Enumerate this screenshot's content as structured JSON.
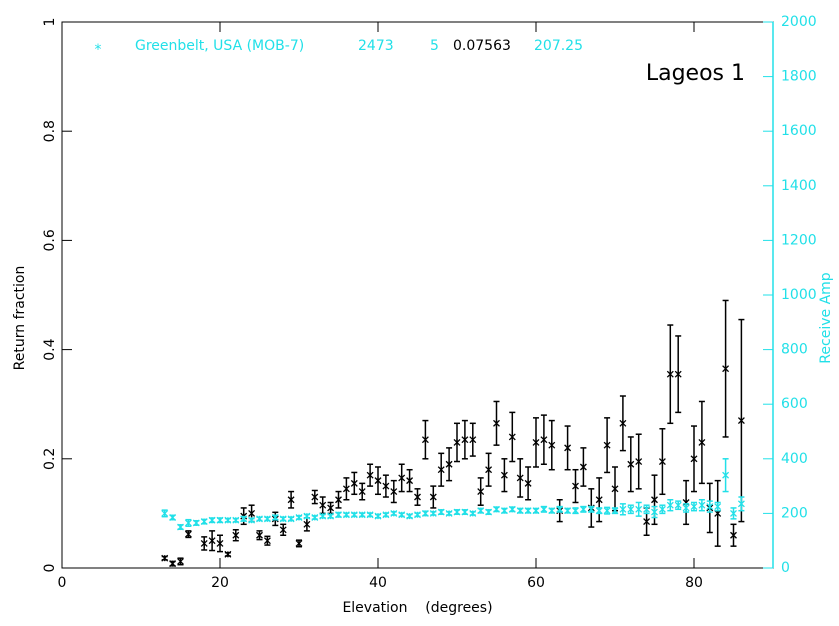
{
  "chart_data": {
    "type": "scatter",
    "title": "Lageos 1",
    "header": {
      "marker": "*",
      "station": "Greenbelt, USA (MOB-7)",
      "station_color": "#22e0e8",
      "stats": [
        {
          "value": 2473,
          "color": "#22e0e8"
        },
        {
          "value": 5,
          "color": "#22e0e8"
        },
        {
          "value": 0.07563,
          "color": "#000000"
        },
        {
          "value": 207.25,
          "color": "#22e0e8"
        }
      ]
    },
    "xlabel": "Elevation    (degrees)",
    "ylabel": "Return fraction",
    "y2label": "Receive Amp",
    "y2color": "#22e0e8",
    "xlim": [
      0,
      90
    ],
    "xticks": [
      0,
      20,
      40,
      60,
      80
    ],
    "ylim": [
      0,
      1
    ],
    "yticks": [
      0,
      0.2,
      0.4,
      0.6,
      0.8,
      1
    ],
    "y2lim": [
      0,
      2000
    ],
    "y2ticks": [
      0,
      200,
      400,
      600,
      800,
      1000,
      1200,
      1400,
      1600,
      1800,
      2000
    ],
    "series": [
      {
        "color": "#000000",
        "axis": "y",
        "x": [
          13,
          14,
          15,
          16,
          18,
          19,
          20,
          21,
          22,
          23,
          24,
          25,
          26,
          27,
          28,
          29,
          30,
          31,
          32,
          33,
          34,
          35,
          36,
          37,
          38,
          39,
          40,
          41,
          42,
          43,
          44,
          45,
          46,
          47,
          48,
          49,
          50,
          51,
          52,
          53,
          54,
          55,
          56,
          57,
          58,
          59,
          60,
          61,
          62,
          63,
          64,
          65,
          66,
          67,
          68,
          69,
          70,
          71,
          72,
          73,
          74,
          75,
          76,
          77,
          78,
          79,
          80,
          81,
          82,
          83,
          84,
          85,
          86
        ],
        "values": [
          0.018,
          0.008,
          0.012,
          0.062,
          0.045,
          0.05,
          0.045,
          0.025,
          0.06,
          0.095,
          0.1,
          0.06,
          0.05,
          0.09,
          0.07,
          0.125,
          0.045,
          0.08,
          0.13,
          0.115,
          0.11,
          0.125,
          0.145,
          0.155,
          0.14,
          0.17,
          0.16,
          0.15,
          0.14,
          0.165,
          0.16,
          0.13,
          0.235,
          0.13,
          0.18,
          0.19,
          0.23,
          0.235,
          0.235,
          0.14,
          0.18,
          0.265,
          0.17,
          0.24,
          0.165,
          0.155,
          0.23,
          0.235,
          0.225,
          0.105,
          0.22,
          0.15,
          0.185,
          0.11,
          0.125,
          0.225,
          0.145,
          0.265,
          0.19,
          0.195,
          0.085,
          0.125,
          0.195,
          0.355,
          0.355,
          0.12,
          0.2,
          0.23,
          0.11,
          0.1,
          0.365,
          0.06,
          0.27
        ],
        "errors": [
          0.003,
          0.004,
          0.006,
          0.006,
          0.012,
          0.018,
          0.015,
          0.003,
          0.01,
          0.015,
          0.015,
          0.008,
          0.008,
          0.012,
          0.01,
          0.015,
          0.006,
          0.012,
          0.012,
          0.015,
          0.01,
          0.015,
          0.02,
          0.02,
          0.015,
          0.02,
          0.025,
          0.02,
          0.02,
          0.025,
          0.02,
          0.015,
          0.035,
          0.02,
          0.03,
          0.03,
          0.035,
          0.035,
          0.03,
          0.025,
          0.03,
          0.04,
          0.03,
          0.045,
          0.035,
          0.03,
          0.045,
          0.045,
          0.045,
          0.02,
          0.04,
          0.03,
          0.035,
          0.035,
          0.04,
          0.05,
          0.04,
          0.05,
          0.05,
          0.05,
          0.025,
          0.045,
          0.06,
          0.09,
          0.07,
          0.04,
          0.06,
          0.075,
          0.045,
          0.06,
          0.125,
          0.02,
          0.185
        ]
      },
      {
        "color": "#22e0e8",
        "axis": "y2",
        "x": [
          13,
          14,
          15,
          16,
          17,
          18,
          19,
          20,
          21,
          22,
          23,
          24,
          25,
          26,
          27,
          28,
          29,
          30,
          31,
          32,
          33,
          34,
          35,
          36,
          37,
          38,
          39,
          40,
          41,
          42,
          43,
          44,
          45,
          46,
          47,
          48,
          49,
          50,
          51,
          52,
          53,
          54,
          55,
          56,
          57,
          58,
          59,
          60,
          61,
          62,
          63,
          64,
          65,
          66,
          67,
          68,
          69,
          70,
          71,
          72,
          73,
          74,
          75,
          76,
          77,
          78,
          79,
          80,
          81,
          82,
          83,
          84,
          85,
          86
        ],
        "values": [
          200,
          185,
          150,
          165,
          165,
          170,
          175,
          175,
          175,
          175,
          180,
          175,
          180,
          180,
          185,
          180,
          180,
          185,
          190,
          185,
          190,
          190,
          195,
          195,
          195,
          195,
          195,
          190,
          195,
          200,
          195,
          190,
          195,
          200,
          200,
          205,
          200,
          205,
          205,
          200,
          210,
          205,
          215,
          210,
          215,
          210,
          210,
          210,
          215,
          210,
          215,
          210,
          210,
          215,
          215,
          210,
          210,
          210,
          215,
          215,
          215,
          215,
          205,
          215,
          230,
          230,
          220,
          225,
          230,
          225,
          225,
          340,
          200,
          235
        ],
        "errors": [
          12,
          8,
          8,
          12,
          8,
          8,
          8,
          8,
          6,
          6,
          8,
          6,
          6,
          6,
          8,
          6,
          6,
          6,
          6,
          6,
          6,
          6,
          8,
          6,
          6,
          6,
          6,
          6,
          6,
          6,
          6,
          6,
          6,
          8,
          6,
          8,
          6,
          8,
          8,
          6,
          8,
          8,
          8,
          8,
          8,
          8,
          8,
          8,
          10,
          8,
          10,
          8,
          10,
          10,
          10,
          10,
          12,
          10,
          20,
          15,
          25,
          15,
          20,
          15,
          20,
          15,
          15,
          15,
          20,
          20,
          15,
          60,
          20,
          25
        ]
      }
    ]
  }
}
